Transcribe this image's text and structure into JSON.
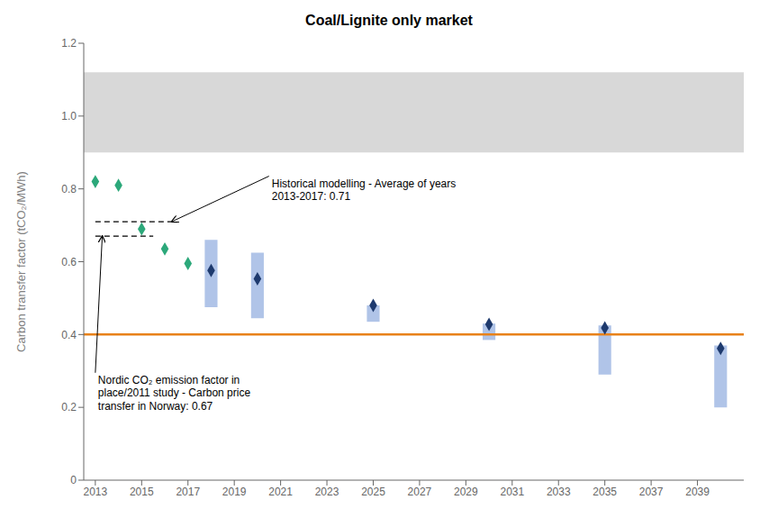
{
  "chart_data": {
    "type": "scatter",
    "title": "Coal/Lignite only market",
    "ylabel": "Carbon transfer factor (tCO₂/MWh)",
    "xlim": [
      2012.5,
      2041
    ],
    "ylim": [
      0,
      1.2
    ],
    "xticks": [
      2013,
      2015,
      2017,
      2019,
      2021,
      2023,
      2025,
      2027,
      2029,
      2031,
      2033,
      2035,
      2037,
      2039
    ],
    "yticks": [
      0,
      0.2,
      0.4,
      0.6,
      0.8,
      {
        "value": 1.0,
        "label": "1.0"
      },
      1.2
    ],
    "grid": false,
    "series": [
      {
        "type": "range_bar",
        "color": "#b0c4e8",
        "x": [
          2018,
          2020,
          2025,
          2030,
          2035,
          2040
        ],
        "low": [
          0.475,
          0.445,
          0.435,
          0.385,
          0.29,
          0.2
        ],
        "high": [
          0.66,
          0.625,
          0.48,
          0.43,
          0.425,
          0.37
        ]
      },
      {
        "type": "scatter",
        "marker": "diamond",
        "color": "#2ca87a",
        "x": [
          2013,
          2014,
          2015,
          2016,
          2017
        ],
        "values": [
          0.82,
          0.81,
          0.69,
          0.635,
          0.595
        ]
      },
      {
        "type": "scatter",
        "marker": "diamond",
        "color": "#1e3a6e",
        "x": [
          2018,
          2020,
          2025,
          2030,
          2035,
          2040
        ],
        "values": [
          0.576,
          0.553,
          0.48,
          0.428,
          0.418,
          0.362
        ]
      }
    ],
    "bands": [
      {
        "y_from": 0.9,
        "y_to": 1.12,
        "color": "#d8d8d8"
      }
    ],
    "lines": [
      {
        "y": 0.4,
        "color": "#e8821a",
        "line_style": "solid"
      },
      {
        "y": 0.71,
        "x_from": 2013.0,
        "x_to": 2016.3,
        "color": "#000000",
        "line_style": "dashed"
      },
      {
        "y": 0.67,
        "x_from": 2013.0,
        "x_to": 2015.5,
        "color": "#000000",
        "line_style": "dashed"
      }
    ],
    "annotations": [
      {
        "text": "Historical modelling - Average of years\n2013-2017: 0.71",
        "x": 2020.5,
        "y": 0.835,
        "arrow_x": 2016.3,
        "arrow_y": 0.71,
        "color": "#000000"
      },
      {
        "text": "Nordic CO₂ emission factor in\nplace/2011 study - Carbon price\ntransfer in Norway: 0.67",
        "x": 2013.0,
        "y": 0.295,
        "arrow_x": 2013.3,
        "arrow_y": 0.67,
        "color": "#000000"
      }
    ]
  }
}
